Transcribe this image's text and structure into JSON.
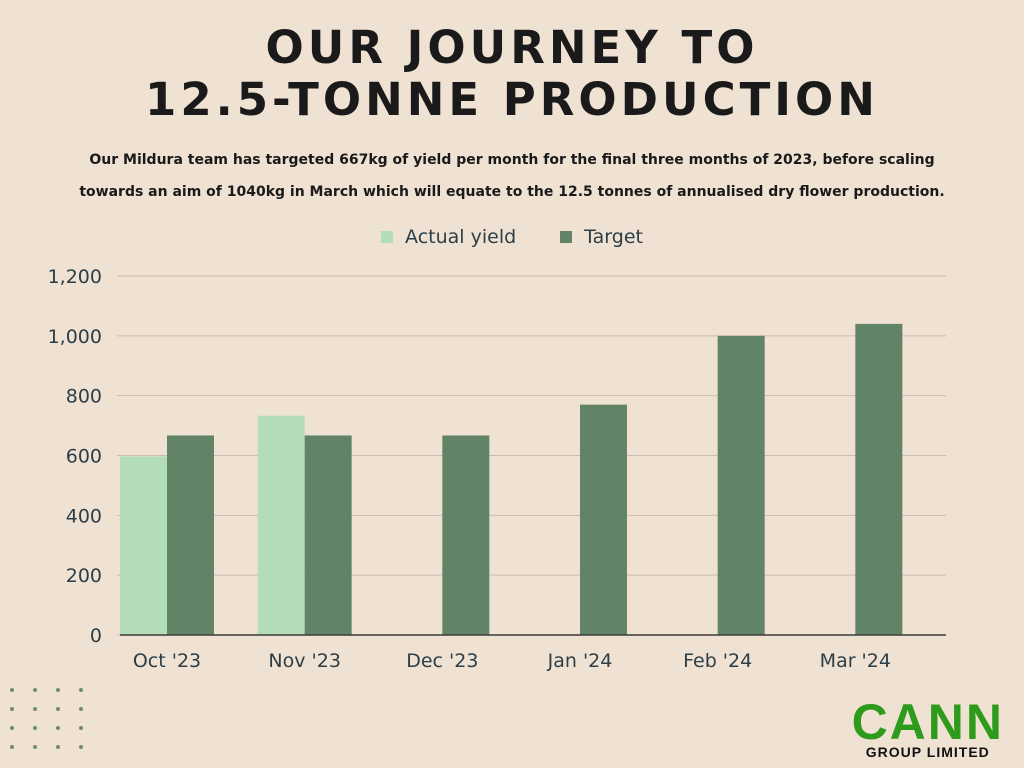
{
  "header": {
    "title_line1": "OUR JOURNEY TO",
    "title_line2": "12.5-TONNE PRODUCTION",
    "subtitle_line1": "Our Mildura team has targeted 667kg of yield per month for the final three months of 2023, before scaling",
    "subtitle_line2": "towards an aim of 1040kg in March which will equate to the 12.5 tonnes of annualised dry flower production."
  },
  "logo": {
    "main": "CANN",
    "sub": "GROUP LIMITED",
    "color": "#2e9b1c"
  },
  "colors": {
    "background": "#f0e2d2",
    "actual": "#b3ddb9",
    "target": "#618466",
    "grid": "#c9bcb0",
    "axis_text": "#2c3e48"
  },
  "chart_data": {
    "type": "bar",
    "categories": [
      "Oct '23",
      "Nov '23",
      "Dec '23",
      "Jan '24",
      "Feb '24",
      "Mar '24"
    ],
    "series": [
      {
        "name": "Actual yield",
        "values": [
          597,
          733,
          null,
          null,
          null,
          null
        ],
        "color": "#b3ddb9"
      },
      {
        "name": "Target",
        "values": [
          667,
          667,
          667,
          770,
          1000,
          1040
        ],
        "color": "#618466"
      }
    ],
    "yticks": [
      "0",
      "200",
      "400",
      "600",
      "800",
      "1,000",
      "1,200"
    ],
    "ylim": [
      0,
      1200
    ],
    "grid": true,
    "legend": "top"
  }
}
